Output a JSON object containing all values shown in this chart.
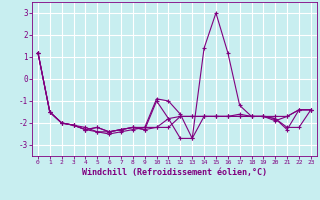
{
  "title": "",
  "xlabel": "Windchill (Refroidissement éolien,°C)",
  "background_color": "#c8eef0",
  "line_color": "#800080",
  "grid_color": "#ffffff",
  "xlim": [
    -0.5,
    23.5
  ],
  "ylim": [
    -3.5,
    3.5
  ],
  "yticks": [
    -3,
    -2,
    -1,
    0,
    1,
    2,
    3
  ],
  "xticks": [
    0,
    1,
    2,
    3,
    4,
    5,
    6,
    7,
    8,
    9,
    10,
    11,
    12,
    13,
    14,
    15,
    16,
    17,
    18,
    19,
    20,
    21,
    22,
    23
  ],
  "series": [
    [
      1.2,
      -1.5,
      -2.0,
      -2.1,
      -2.3,
      -2.4,
      -2.5,
      -2.4,
      -2.3,
      -2.2,
      -0.9,
      -1.0,
      -1.6,
      -2.7,
      1.4,
      3.0,
      1.2,
      -1.2,
      -1.7,
      -1.7,
      -1.8,
      -2.3,
      -1.4,
      -1.4
    ],
    [
      1.2,
      -1.5,
      -2.0,
      -2.1,
      -2.2,
      -2.4,
      -2.4,
      -2.3,
      -2.2,
      -2.2,
      -2.2,
      -1.8,
      -1.7,
      -1.7,
      -1.7,
      -1.7,
      -1.7,
      -1.7,
      -1.7,
      -1.7,
      -1.7,
      -1.7,
      -1.4,
      -1.4
    ],
    [
      1.2,
      -1.5,
      -2.0,
      -2.1,
      -2.3,
      -2.2,
      -2.4,
      -2.3,
      -2.2,
      -2.3,
      -1.0,
      -1.8,
      -2.7,
      -2.7,
      -1.7,
      -1.7,
      -1.7,
      -1.6,
      -1.7,
      -1.7,
      -1.9,
      -1.7,
      -1.4,
      -1.4
    ],
    [
      1.2,
      -1.5,
      -2.0,
      -2.1,
      -2.3,
      -2.2,
      -2.4,
      -2.3,
      -2.2,
      -2.3,
      -2.2,
      -2.2,
      -1.7,
      -1.7,
      -1.7,
      -1.7,
      -1.7,
      -1.7,
      -1.7,
      -1.7,
      -1.8,
      -2.2,
      -2.2,
      -1.4
    ]
  ],
  "tick_fontsize": 5.5,
  "xlabel_fontsize": 6.0,
  "linewidth": 0.8,
  "markersize": 3.5
}
